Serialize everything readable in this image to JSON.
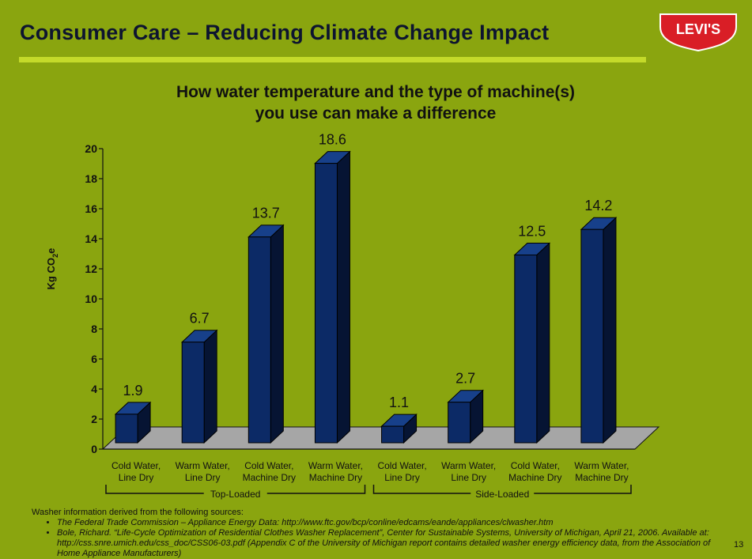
{
  "slide": {
    "title": "Consumer Care – Reducing Climate Change Impact",
    "page_number": "13",
    "logo_text": "LEVI'S",
    "colors": {
      "background": "#8aa50f",
      "accent_rule": "#c4da2a",
      "bar_fill": "#0c2a66",
      "logo_red": "#d91e26"
    }
  },
  "chart_data": {
    "type": "bar",
    "title_lines": [
      "How water temperature and the type of machine(s)",
      "you use can make a difference"
    ],
    "ylabel": "Kg CO2e",
    "ylabel_parts": {
      "main": "Kg CO",
      "sub": "2",
      "tail": "e"
    },
    "ylim": [
      0,
      20
    ],
    "yticks": [
      0,
      2,
      4,
      6,
      8,
      10,
      12,
      14,
      16,
      18,
      20
    ],
    "categories": [
      [
        "Cold Water,",
        "Line Dry"
      ],
      [
        "Warm Water,",
        "Line Dry"
      ],
      [
        "Cold Water,",
        "Machine Dry"
      ],
      [
        "Warm Water,",
        "Machine Dry"
      ],
      [
        "Cold Water,",
        "Line Dry"
      ],
      [
        "Warm Water,",
        "Line Dry"
      ],
      [
        "Cold Water,",
        "Machine Dry"
      ],
      [
        "Warm Water,",
        "Machine Dry"
      ]
    ],
    "values": [
      1.9,
      6.7,
      13.7,
      18.6,
      1.1,
      2.7,
      12.5,
      14.2
    ],
    "groups": [
      {
        "label": "Top-Loaded",
        "from": 0,
        "to": 3
      },
      {
        "label": "Side-Loaded",
        "from": 4,
        "to": 7
      }
    ],
    "grid": false
  },
  "footnote": {
    "intro": "Washer information derived from the following sources:",
    "items": [
      "The Federal Trade Commission – Appliance Energy Data: http://www.ftc.gov/bcp/conline/edcams/eande/appliances/clwasher.htm",
      "Bole, Richard. “Life-Cycle Optimization of Residential Clothes Washer Replacement”, Center for Sustainable Systems, University of Michigan, April 21, 2006. Available at: http://css.snre.umich.edu/css_doc/CSS06-03.pdf  (Appendix C of the University of Michigan report contains detailed washer energy efficiency data, from the Association of Home Appliance Manufacturers)"
    ]
  }
}
